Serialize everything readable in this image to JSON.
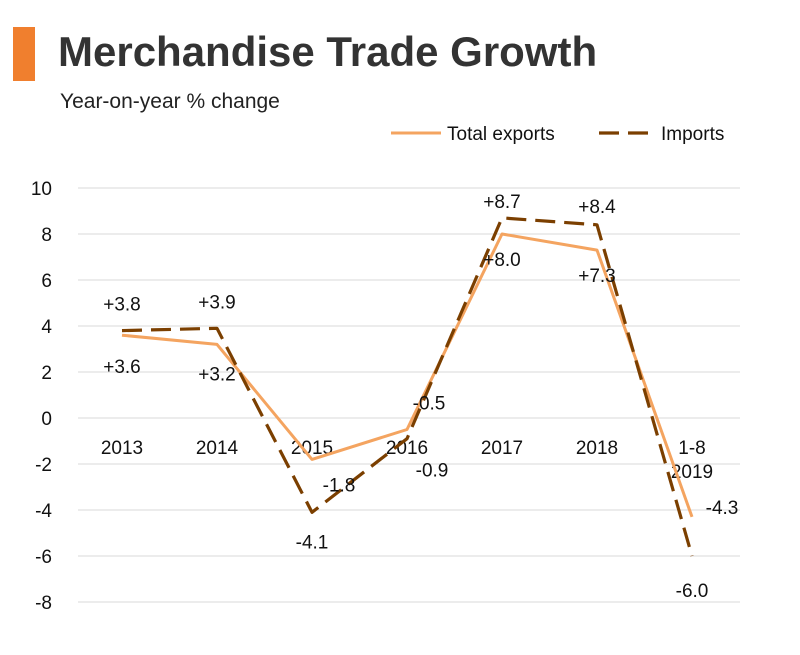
{
  "header": {
    "title": "Merchandise Trade Growth",
    "subtitle": "Year-on-year % change",
    "accent_color": "#F07F2E"
  },
  "chart_data": {
    "type": "line",
    "title": "Merchandise Trade Growth",
    "subtitle": "Year-on-year % change",
    "xlabel": "",
    "ylabel": "",
    "categories": [
      "2013",
      "2014",
      "2015",
      "2016",
      "2017",
      "2018",
      "1-8\n2019"
    ],
    "ylim": [
      -8,
      10
    ],
    "yticks": [
      10,
      8,
      6,
      4,
      2,
      0,
      -2,
      -4,
      -6,
      -8
    ],
    "grid": true,
    "legend_position": "top-right",
    "series": [
      {
        "name": "Total exports",
        "style": "solid",
        "color": "#F4A460",
        "values": [
          3.6,
          3.2,
          -1.8,
          -0.5,
          8.0,
          7.3,
          -4.3
        ],
        "labels": [
          "+3.6",
          "+3.2",
          "-1.8",
          "-0.5",
          "+8.0",
          "+7.3",
          "-4.3"
        ]
      },
      {
        "name": "Imports",
        "style": "dashed",
        "color": "#7B3F00",
        "values": [
          3.8,
          3.9,
          -4.1,
          -0.9,
          8.7,
          8.4,
          -6.0
        ],
        "labels": [
          "+3.8",
          "+3.9",
          "-4.1",
          "-0.9",
          "+8.7",
          "+8.4",
          "-6.0"
        ]
      }
    ]
  }
}
